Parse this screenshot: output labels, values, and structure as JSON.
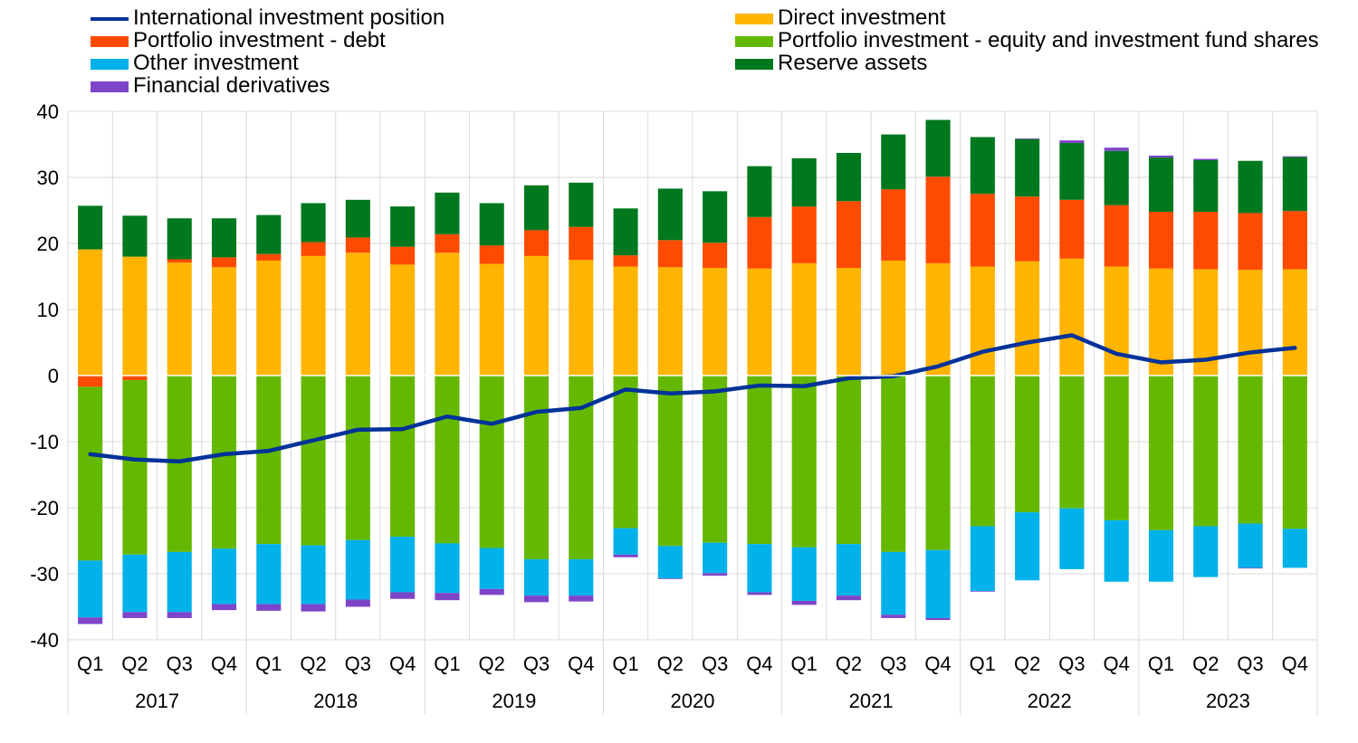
{
  "chart_data": {
    "type": "bar",
    "title": "",
    "xlabel": "",
    "ylabel": "",
    "ylim": [
      -40,
      40
    ],
    "yticks": [
      40,
      30,
      20,
      10,
      0,
      -10,
      -20,
      -30,
      -40
    ],
    "grid": true,
    "legend_position": "top",
    "years": [
      "2017",
      "2018",
      "2019",
      "2020",
      "2021",
      "2022",
      "2023"
    ],
    "quarters": [
      "Q1",
      "Q2",
      "Q3",
      "Q4"
    ],
    "categories": [
      "2017 Q1",
      "2017 Q2",
      "2017 Q3",
      "2017 Q4",
      "2018 Q1",
      "2018 Q2",
      "2018 Q3",
      "2018 Q4",
      "2019 Q1",
      "2019 Q2",
      "2019 Q3",
      "2019 Q4",
      "2020 Q1",
      "2020 Q2",
      "2020 Q3",
      "2020 Q4",
      "2021 Q1",
      "2021 Q2",
      "2021 Q3",
      "2021 Q4",
      "2022 Q1",
      "2022 Q2",
      "2022 Q3",
      "2022 Q4",
      "2023 Q1",
      "2023 Q2",
      "2023 Q3",
      "2023 Q4"
    ],
    "series": [
      {
        "name": "International investment position",
        "kind": "line",
        "color": "#003299",
        "values": [
          -11.9,
          -12.7,
          -13.0,
          -11.9,
          -11.4,
          -9.8,
          -8.2,
          -8.1,
          -6.2,
          -7.3,
          -5.5,
          -4.9,
          -2.1,
          -2.7,
          -2.4,
          -1.5,
          -1.6,
          -0.4,
          -0.1,
          1.4,
          3.6,
          5.0,
          6.1,
          3.3,
          2.0,
          2.4,
          3.5,
          4.2
        ]
      },
      {
        "name": "Direct investment",
        "kind": "bar",
        "color": "#FFB400",
        "values": [
          19.1,
          18.0,
          17.1,
          16.4,
          17.4,
          18.1,
          18.6,
          16.8,
          18.6,
          16.9,
          18.1,
          17.5,
          16.5,
          16.4,
          16.3,
          16.2,
          17.0,
          16.3,
          17.4,
          17.0,
          16.5,
          17.3,
          17.7,
          16.5,
          16.2,
          16.1,
          16.0,
          16.1
        ]
      },
      {
        "name": "Portfolio investment - debt",
        "kind": "bar",
        "color": "#FF4B00",
        "values": [
          -1.7,
          -0.7,
          0.5,
          1.5,
          1.0,
          2.1,
          2.3,
          2.7,
          2.8,
          2.8,
          3.9,
          5.0,
          1.7,
          4.1,
          3.8,
          7.8,
          8.6,
          10.1,
          10.8,
          13.1,
          11.0,
          9.8,
          8.9,
          9.3,
          8.6,
          8.7,
          8.6,
          8.8
        ]
      },
      {
        "name": "Portfolio investment - equity and investment fund shares",
        "kind": "bar",
        "color": "#65B800",
        "values": [
          -26.3,
          -26.4,
          -26.7,
          -26.2,
          -25.5,
          -25.7,
          -24.9,
          -24.4,
          -25.4,
          -26.1,
          -27.8,
          -27.8,
          -23.1,
          -25.8,
          -25.3,
          -25.5,
          -26.0,
          -25.5,
          -26.7,
          -26.4,
          -22.8,
          -20.7,
          -20.1,
          -21.9,
          -23.4,
          -22.8,
          -22.4,
          -23.2
        ]
      },
      {
        "name": "Reserve assets",
        "kind": "bar",
        "color": "#00781E",
        "values": [
          6.6,
          6.2,
          6.2,
          5.9,
          5.9,
          5.9,
          5.7,
          6.1,
          6.3,
          6.4,
          6.8,
          6.7,
          7.1,
          7.8,
          7.8,
          7.7,
          7.3,
          7.3,
          8.3,
          8.6,
          8.6,
          8.7,
          8.6,
          8.2,
          8.2,
          7.8,
          7.9,
          8.2
        ]
      },
      {
        "name": "Other investment",
        "kind": "bar",
        "color": "#00B1EA",
        "values": [
          -8.6,
          -8.7,
          -9.1,
          -8.4,
          -9.1,
          -8.9,
          -9.0,
          -8.4,
          -7.5,
          -6.2,
          -5.5,
          -5.5,
          -4.0,
          -4.9,
          -4.6,
          -7.3,
          -8.1,
          -7.8,
          -9.5,
          -10.3,
          -9.8,
          -10.3,
          -9.2,
          -9.3,
          -7.8,
          -7.7,
          -6.7,
          -5.9
        ]
      },
      {
        "name": "Financial derivatives",
        "kind": "bar",
        "color": "#7D45C8",
        "values": [
          -1.0,
          -0.9,
          -0.9,
          -0.9,
          -1.0,
          -1.1,
          -1.1,
          -1.0,
          -1.1,
          -0.9,
          -1.0,
          -0.9,
          -0.4,
          -0.1,
          -0.4,
          -0.4,
          -0.6,
          -0.7,
          -0.5,
          -0.3,
          -0.1,
          0.1,
          0.4,
          0.5,
          0.3,
          0.2,
          -0.1,
          0.1
        ]
      }
    ]
  }
}
